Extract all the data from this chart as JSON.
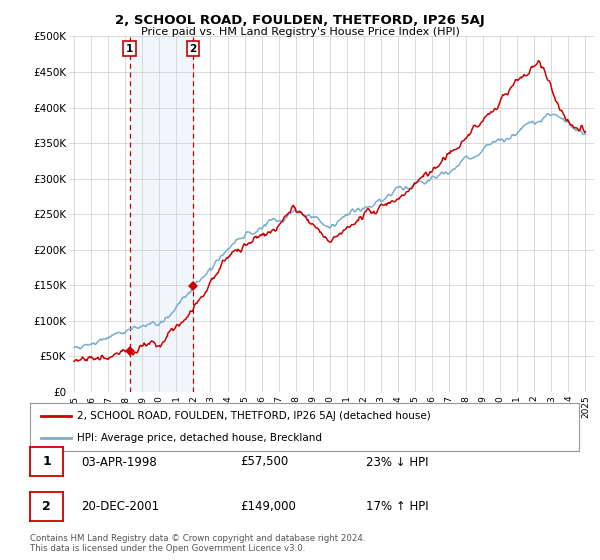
{
  "title": "2, SCHOOL ROAD, FOULDEN, THETFORD, IP26 5AJ",
  "subtitle": "Price paid vs. HM Land Registry's House Price Index (HPI)",
  "ylabel_ticks": [
    "£0",
    "£50K",
    "£100K",
    "£150K",
    "£200K",
    "£250K",
    "£300K",
    "£350K",
    "£400K",
    "£450K",
    "£500K"
  ],
  "ytick_values": [
    0,
    50000,
    100000,
    150000,
    200000,
    250000,
    300000,
    350000,
    400000,
    450000,
    500000
  ],
  "xlim_start": 1994.7,
  "xlim_end": 2025.5,
  "ylim": [
    0,
    500000
  ],
  "sale1": {
    "date_num": 1998.25,
    "price": 57500,
    "label": "1"
  },
  "sale2": {
    "date_num": 2001.97,
    "price": 149000,
    "label": "2"
  },
  "legend_red": "2, SCHOOL ROAD, FOULDEN, THETFORD, IP26 5AJ (detached house)",
  "legend_blue": "HPI: Average price, detached house, Breckland",
  "table_rows": [
    {
      "num": "1",
      "date": "03-APR-1998",
      "price": "£57,500",
      "hpi": "23% ↓ HPI"
    },
    {
      "num": "2",
      "date": "20-DEC-2001",
      "price": "£149,000",
      "hpi": "17% ↑ HPI"
    }
  ],
  "footer": "Contains HM Land Registry data © Crown copyright and database right 2024.\nThis data is licensed under the Open Government Licence v3.0.",
  "bg_color": "#ffffff",
  "red_color": "#cc0000",
  "blue_color": "#7aadcf",
  "grid_color": "#cccccc",
  "shade_color": "#d8e8f5"
}
